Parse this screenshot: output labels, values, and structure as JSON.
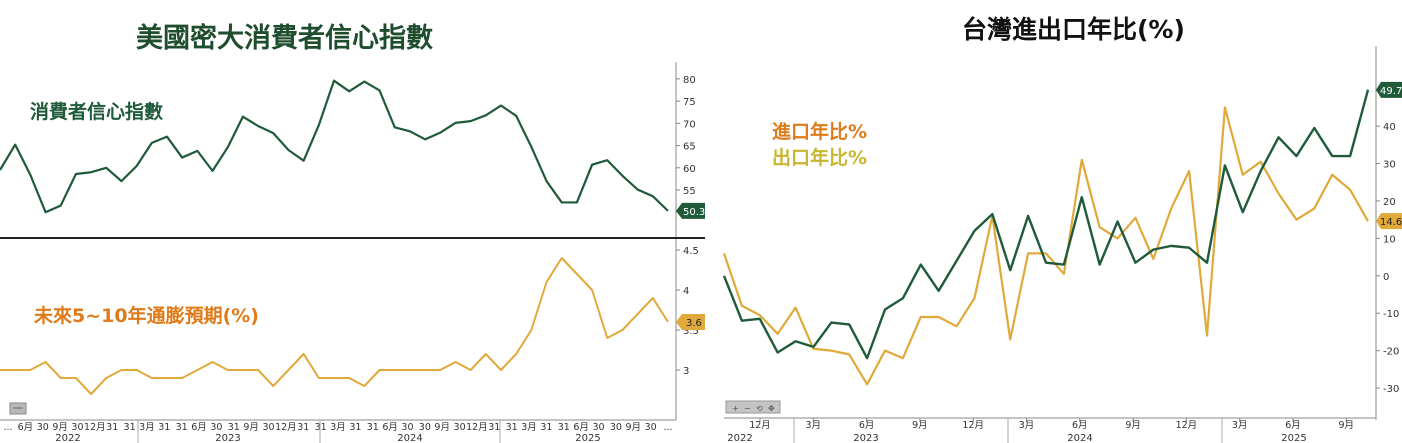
{
  "colors": {
    "green": "#1f5b3a",
    "orange": "#e0a93a",
    "import_label": "#e07b1a",
    "export_label": "#c9b62e",
    "divider": "#222222"
  },
  "left": {
    "title": "美國密大消費者信心指數",
    "upper_label": "消費者信心指數",
    "lower_label": "未來5~10年通膨預期(%)",
    "upper_last_value": "50.3",
    "lower_last_value": "3.6",
    "x_ticks": [
      "...",
      "6月",
      "30",
      "9月",
      "30",
      "12月",
      "31",
      "31",
      "3月",
      "31",
      "31",
      "6月",
      "30",
      "31",
      "9月",
      "30",
      "12月",
      "31",
      "31",
      "3月",
      "31",
      "31",
      "6月",
      "30",
      "30",
      "9月",
      "30",
      "12月",
      "31",
      "31",
      "3月",
      "31",
      "31",
      "6月",
      "30",
      "30",
      "9月",
      "30",
      "..."
    ],
    "year_labels": [
      "2022",
      "2023",
      "2024",
      "2025"
    ],
    "legend_icon": "chart-options-icon"
  },
  "right": {
    "title": "台灣進出口年比(%)",
    "import_label": "進口年比%",
    "export_label": "出口年比%",
    "export_last_value": "49.7",
    "import_last_value": "14.6",
    "x_ticks": [
      "12月",
      "3月",
      "6月",
      "9月",
      "12月",
      "3月",
      "6月",
      "9月",
      "12月",
      "3月",
      "6月",
      "9月"
    ],
    "year_labels": [
      "2022",
      "2023",
      "2024",
      "2025"
    ],
    "toolbar_icons": [
      "zoom-in-icon",
      "zoom-out-icon",
      "reset-icon",
      "pan-icon"
    ]
  },
  "chart_data": [
    {
      "type": "line",
      "title": "美國密大消費者信心指數",
      "panel": "upper",
      "ylim": [
        46,
        82
      ],
      "yticks": [
        50,
        55,
        60,
        65,
        70,
        75,
        80
      ],
      "series": [
        {
          "name": "消費者信心指數",
          "values": [
            59.5,
            65.2,
            58.4,
            50.0,
            51.5,
            58.6,
            59.0,
            60.0,
            57.0,
            60.4,
            65.6,
            67.0,
            62.3,
            63.8,
            59.3,
            64.6,
            71.5,
            69.4,
            67.8,
            64.0,
            61.6,
            69.6,
            79.6,
            77.2,
            79.4,
            77.4,
            69.1,
            68.2,
            66.4,
            67.9,
            70.1,
            70.5,
            71.8,
            74.0,
            71.7,
            64.7,
            57.0,
            52.2,
            52.2,
            60.7,
            61.7,
            58.2,
            55.1,
            53.6,
            50.3
          ]
        }
      ]
    },
    {
      "type": "line",
      "title": "未來5~10年通膨預期(%)",
      "panel": "lower",
      "ylim": [
        2.5,
        4.6
      ],
      "yticks": [
        3.0,
        3.5,
        4.0,
        4.5
      ],
      "series": [
        {
          "name": "未來5~10年通膨預期(%)",
          "values": [
            3.0,
            3.0,
            3.0,
            3.1,
            2.9,
            2.9,
            2.7,
            2.9,
            3.0,
            3.0,
            2.9,
            2.9,
            2.9,
            3.0,
            3.1,
            3.0,
            3.0,
            3.0,
            2.8,
            3.0,
            3.2,
            2.9,
            2.9,
            2.9,
            2.8,
            3.0,
            3.0,
            3.0,
            3.0,
            3.0,
            3.1,
            3.0,
            3.2,
            3.0,
            3.2,
            3.5,
            4.1,
            4.4,
            4.2,
            4.0,
            3.4,
            3.5,
            3.7,
            3.9,
            3.6
          ]
        }
      ]
    },
    {
      "type": "line",
      "title": "台灣進出口年比(%)",
      "ylim": [
        -38,
        55
      ],
      "yticks": [
        -30,
        -20,
        -10,
        0,
        10,
        20,
        30,
        40
      ],
      "series": [
        {
          "name": "出口年比%",
          "values": [
            0.0,
            -12.0,
            -11.5,
            -20.5,
            -17.5,
            -19.0,
            -12.5,
            -13.0,
            -22.0,
            -9.0,
            -6.0,
            3.0,
            -4.0,
            4.0,
            12.0,
            16.5,
            1.5,
            16.0,
            3.5,
            3.0,
            21.0,
            3.0,
            14.5,
            3.5,
            7.0,
            8.0,
            7.5,
            3.5,
            29.5,
            17.0,
            28.0,
            37.0,
            32.0,
            39.5,
            32.0,
            32.0,
            49.7
          ]
        },
        {
          "name": "進口年比%",
          "values": [
            6.0,
            -8.0,
            -10.5,
            -15.5,
            -8.5,
            -19.5,
            -20.0,
            -21.0,
            -29.0,
            -20.0,
            -22.0,
            -11.0,
            -11.0,
            -13.5,
            -6.0,
            16.0,
            -17.0,
            6.0,
            6.0,
            0.5,
            31.0,
            13.0,
            10.0,
            15.5,
            4.5,
            18.0,
            28.0,
            -16.0,
            45.0,
            27.0,
            30.5,
            22.0,
            15.0,
            18.0,
            27.0,
            23.0,
            14.6
          ]
        }
      ]
    }
  ]
}
